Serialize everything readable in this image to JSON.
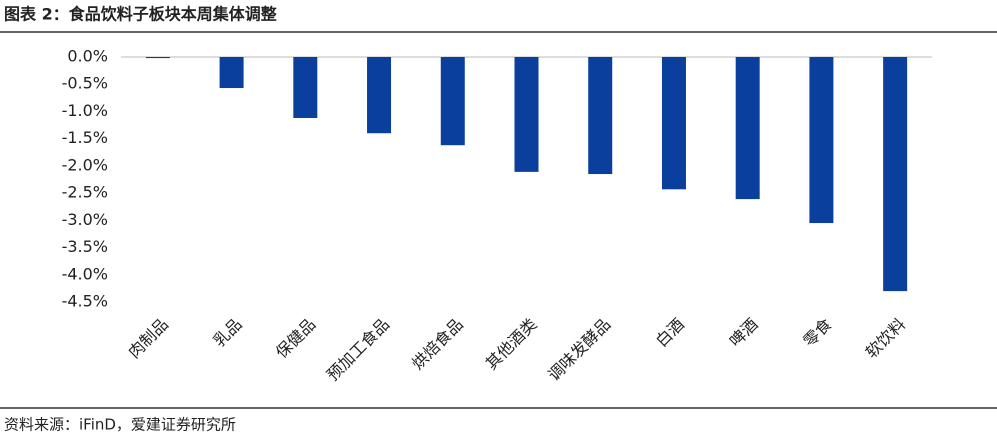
{
  "chart_data": {
    "type": "bar",
    "title": "图表 2：食品饮料子板块本周集体调整",
    "source": "资料来源：iFinD，爱建证券研究所",
    "categories": [
      "肉制品",
      "乳品",
      "保健品",
      "预加工食品",
      "烘焙食品",
      "其他酒类",
      "调味发酵品",
      "白酒",
      "啤酒",
      "零食",
      "软饮料"
    ],
    "values": [
      -0.02,
      -0.57,
      -1.12,
      -1.4,
      -1.62,
      -2.11,
      -2.15,
      -2.43,
      -2.61,
      -3.05,
      -4.3
    ],
    "color": "#0a3f9e",
    "ylim": [
      -4.5,
      0
    ],
    "yticks": [
      {
        "value": 0,
        "label": "0.0%"
      },
      {
        "value": -0.5,
        "label": "-0.5%"
      },
      {
        "value": -1,
        "label": "-1.0%"
      },
      {
        "value": -1.5,
        "label": "-1.5%"
      },
      {
        "value": -2,
        "label": "-2.0%"
      },
      {
        "value": -2.5,
        "label": "-2.5%"
      },
      {
        "value": -3,
        "label": "-3.0%"
      },
      {
        "value": -3.5,
        "label": "-3.5%"
      },
      {
        "value": -4,
        "label": "-4.0%"
      },
      {
        "value": -4.5,
        "label": "-4.5%"
      }
    ],
    "grid": false
  }
}
